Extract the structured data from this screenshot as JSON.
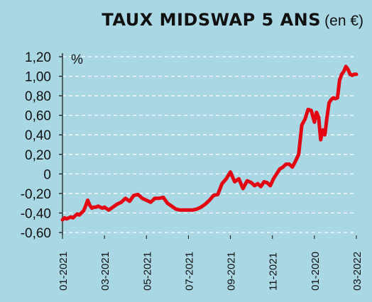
{
  "title": "TAUX MIDSWAP 5 ANS",
  "subtitle": "(en €)",
  "chart_data": {
    "type": "line",
    "title": "TAUX MIDSWAP 5 ANS",
    "subtitle": "(en €)",
    "unit_label": "%",
    "ylim": [
      -0.6,
      1.2
    ],
    "yticks": [
      -0.6,
      -0.4,
      -0.2,
      0,
      0.2,
      0.4,
      0.6,
      0.8,
      1.0,
      1.2
    ],
    "ytick_labels": [
      "-0,60",
      "-0,40",
      "-0,20",
      "0",
      "0,20",
      "0,40",
      "0,60",
      "0,80",
      "1,00",
      "1,20"
    ],
    "xtick_labels": [
      "01-2021",
      "03-2021",
      "05-2021",
      "07-2021",
      "09-2021",
      "11-2021",
      "01-2020",
      "03-2022"
    ],
    "grid": true,
    "line_color": "#e30613",
    "series": [
      {
        "x": [
          0,
          0.1,
          0.2,
          0.3,
          0.4,
          0.5,
          0.6,
          0.7,
          0.8,
          0.9,
          1.0,
          1.1,
          1.2,
          1.3,
          1.4,
          1.5,
          1.6,
          1.7,
          1.8,
          1.9,
          2.0,
          2.2,
          2.4,
          2.6,
          2.8,
          3.0,
          3.2,
          3.4,
          3.6,
          3.8,
          4.0,
          4.2,
          4.4,
          4.6,
          4.8,
          5.0,
          5.2,
          5.4,
          5.6,
          5.8,
          6.0,
          6.2,
          6.4,
          6.6,
          6.8,
          7.0,
          7.2,
          7.4,
          7.6,
          7.8,
          8.0,
          8.2,
          8.4,
          8.6,
          8.8,
          9.0,
          9.15,
          9.3,
          9.45,
          9.6,
          9.75,
          9.9,
          10.05,
          10.2,
          10.35,
          10.5,
          10.65,
          10.8,
          10.95,
          11.1,
          11.25,
          11.4,
          11.55,
          11.7,
          11.85,
          12.0,
          12.1,
          12.2,
          12.3,
          12.4,
          12.5,
          12.6,
          12.7,
          12.8,
          12.9,
          13.0,
          13.1,
          13.2,
          13.3,
          13.4,
          13.5,
          13.6,
          13.7,
          13.8,
          13.9,
          14.0
        ],
        "values": [
          -0.47,
          -0.45,
          -0.46,
          -0.45,
          -0.44,
          -0.45,
          -0.43,
          -0.41,
          -0.42,
          -0.4,
          -0.38,
          -0.33,
          -0.27,
          -0.32,
          -0.35,
          -0.34,
          -0.34,
          -0.33,
          -0.34,
          -0.35,
          -0.34,
          -0.37,
          -0.34,
          -0.31,
          -0.29,
          -0.25,
          -0.28,
          -0.22,
          -0.21,
          -0.25,
          -0.27,
          -0.29,
          -0.25,
          -0.25,
          -0.24,
          -0.3,
          -0.33,
          -0.36,
          -0.37,
          -0.37,
          -0.37,
          -0.37,
          -0.36,
          -0.34,
          -0.31,
          -0.27,
          -0.22,
          -0.21,
          -0.1,
          -0.05,
          0.02,
          -0.08,
          -0.05,
          -0.15,
          -0.07,
          -0.09,
          -0.12,
          -0.1,
          -0.13,
          -0.08,
          -0.09,
          -0.12,
          -0.05,
          0.0,
          0.05,
          0.07,
          0.1,
          0.1,
          0.07,
          0.13,
          0.2,
          0.5,
          0.56,
          0.66,
          0.65,
          0.53,
          0.63,
          0.58,
          0.35,
          0.45,
          0.4,
          0.58,
          0.73,
          0.76,
          0.78,
          0.77,
          0.78,
          0.96,
          1.02,
          1.05,
          1.1,
          1.07,
          1.02,
          1.01,
          1.02,
          1.02
        ]
      }
    ]
  }
}
